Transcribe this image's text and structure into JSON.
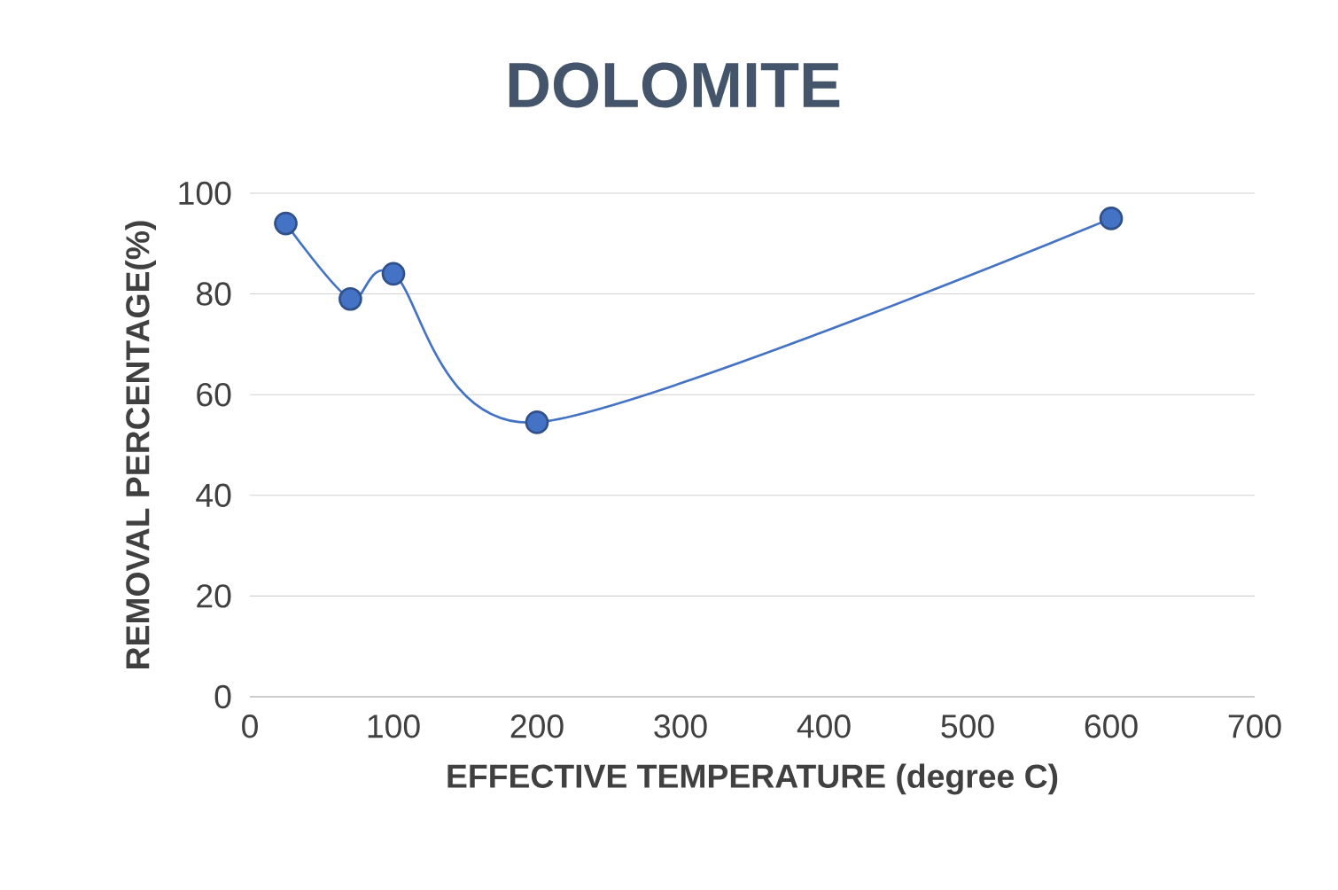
{
  "chart_data": {
    "type": "line",
    "title": "DOLOMITE",
    "xlabel": "EFFECTIVE TEMPERATURE (degree C)",
    "ylabel": "REMOVAL PERCENTAGE(%)",
    "x": [
      25,
      70,
      100,
      200,
      600
    ],
    "series": [
      {
        "color": "#4472c4",
        "values": [
          94,
          79,
          84,
          54.5,
          95
        ]
      }
    ],
    "xlim": [
      0,
      700
    ],
    "xticks": [
      0,
      100,
      200,
      300,
      400,
      500,
      600,
      700
    ],
    "ylim": [
      0,
      100
    ],
    "yticks": [
      0,
      20,
      40,
      60,
      80,
      100
    ],
    "grid": "y",
    "marker": "circle",
    "line_style": "solid"
  }
}
